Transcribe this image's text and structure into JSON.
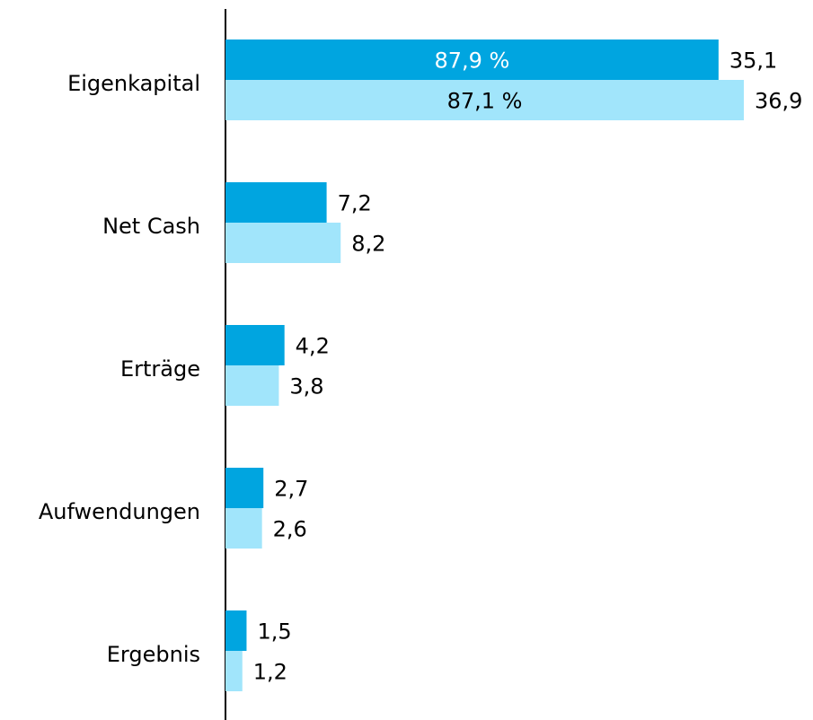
{
  "chart_data": {
    "type": "bar",
    "orientation": "horizontal",
    "categories": [
      "Eigenkapital",
      "Net Cash",
      "Erträge",
      "Aufwendungen",
      "Ergebnis"
    ],
    "series": [
      {
        "color": "#00a5e0",
        "values": [
          35.1,
          7.2,
          4.2,
          2.7,
          1.5
        ],
        "value_labels": [
          "35,1",
          "7,2",
          "4,2",
          "2,7",
          "1,5"
        ],
        "inner_label": "87,9 %",
        "inner_label_color": "#ffffff"
      },
      {
        "color": "#a1e5fb",
        "values": [
          36.9,
          8.2,
          3.8,
          2.6,
          1.2
        ],
        "value_labels": [
          "36,9",
          "8,2",
          "3,8",
          "2,6",
          "1,2"
        ],
        "inner_label": "87,1 %",
        "inner_label_color": "#000000"
      }
    ]
  }
}
